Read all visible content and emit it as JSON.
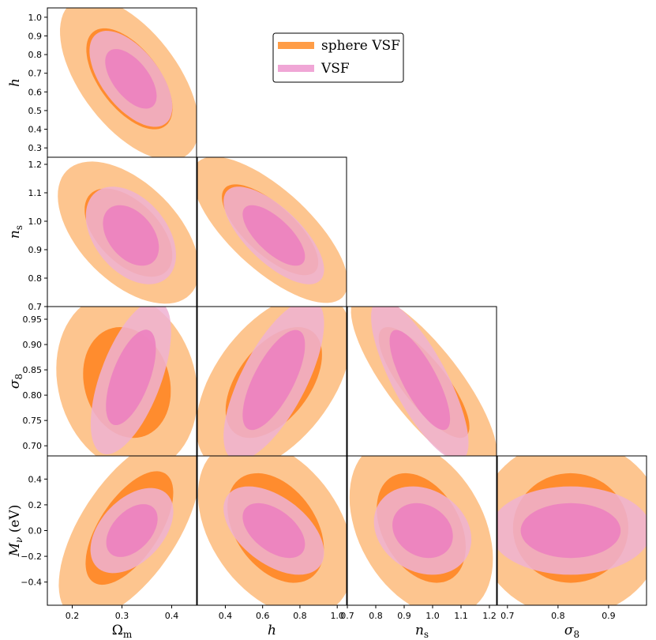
{
  "chart_data": {
    "type": "scatter",
    "subtype": "corner-plot (triangle plot) of 2D confidence ellipses",
    "parameters": [
      {
        "key": "Om",
        "label": "Ω",
        "sub": "m",
        "range": [
          0.15,
          0.45
        ],
        "ticks": [
          0.2,
          0.3,
          0.4
        ],
        "tick_labels": [
          "0.2",
          "0.3",
          "0.4"
        ]
      },
      {
        "key": "h",
        "label": "h",
        "sub": "",
        "range": [
          0.25,
          1.05
        ],
        "ticks": [
          0.3,
          0.4,
          0.5,
          0.6,
          0.7,
          0.8,
          0.9,
          1.0
        ],
        "tick_labels_x": [
          "0.4",
          "0.6",
          "0.8",
          "1.0"
        ],
        "tick_values_x": [
          0.4,
          0.6,
          0.8,
          1.0
        ],
        "tick_labels_y": [
          "0.3",
          "0.4",
          "0.5",
          "0.6",
          "0.7",
          "0.8",
          "0.9",
          "1.0"
        ]
      },
      {
        "key": "ns",
        "label": "n",
        "sub": "s",
        "range": [
          0.7,
          1.225
        ],
        "ticks_y": [
          0.7,
          0.8,
          0.9,
          1.0,
          1.1,
          1.2
        ],
        "tick_labels_y": [
          "0.7",
          "0.8",
          "0.9",
          "1.0",
          "1.1",
          "1.2"
        ],
        "ticks_x": [
          0.7,
          0.8,
          0.9,
          1.0,
          1.1,
          1.2
        ],
        "tick_labels_x": [
          "0.7",
          "0.8",
          "0.9",
          "1.0",
          "1.1",
          "1.2"
        ]
      },
      {
        "key": "s8",
        "label": "σ",
        "sub": "8",
        "range": [
          0.68,
          0.975
        ],
        "ticks_y": [
          0.7,
          0.75,
          0.8,
          0.85,
          0.9,
          0.95
        ],
        "tick_labels_y": [
          "0.70",
          "0.75",
          "0.80",
          "0.85",
          "0.90",
          "0.95"
        ],
        "ticks_x": [
          0.7,
          0.8,
          0.9
        ],
        "tick_labels_x": [
          "0.7",
          "0.8",
          "0.9"
        ]
      },
      {
        "key": "Mnu",
        "label": "M",
        "sub": "ν",
        "suffix": " (eV)",
        "range": [
          -0.58,
          0.58
        ],
        "ticks_y": [
          -0.4,
          -0.2,
          0.0,
          0.2,
          0.4
        ],
        "tick_labels_y": [
          "−0.4",
          "−0.2",
          "0.0",
          "0.2",
          "0.4"
        ]
      }
    ],
    "series": [
      {
        "name": "sphere VSF",
        "color_outer": "#fdc58f",
        "color_inner": "#ff8c2e",
        "swatch": "#ff9d47"
      },
      {
        "name": "VSF",
        "color_outer": "#eeb2d2",
        "color_inner": "#ec7ebf",
        "swatch": "#f0a6d6"
      }
    ],
    "legend": {
      "placement": "top-center",
      "entries": [
        "sphere VSF",
        "VSF"
      ]
    },
    "ellipses": [
      {
        "x": "Om",
        "y": "h",
        "series": 0,
        "cx": 0.315,
        "cy": 0.67,
        "sx": 0.057,
        "sy": 0.178,
        "rho": -0.58
      },
      {
        "x": "Om",
        "y": "h",
        "series": 1,
        "cx": 0.318,
        "cy": 0.67,
        "sx": 0.034,
        "sy": 0.105,
        "rho": -0.58
      },
      {
        "x": "Om",
        "y": "ns",
        "series": 0,
        "cx": 0.313,
        "cy": 0.96,
        "sx": 0.058,
        "sy": 0.102,
        "rho": -0.52
      },
      {
        "x": "Om",
        "y": "ns",
        "series": 1,
        "cx": 0.318,
        "cy": 0.95,
        "sx": 0.037,
        "sy": 0.07,
        "rho": -0.4
      },
      {
        "x": "Om",
        "y": "s8",
        "series": 0,
        "cx": 0.31,
        "cy": 0.825,
        "sx": 0.058,
        "sy": 0.072,
        "rho": -0.15
      },
      {
        "x": "Om",
        "y": "s8",
        "series": 1,
        "cx": 0.318,
        "cy": 0.835,
        "sx": 0.033,
        "sy": 0.062,
        "rho": 0.6
      },
      {
        "x": "Om",
        "y": "Mnu",
        "series": 0,
        "cx": 0.315,
        "cy": 0.02,
        "sx": 0.058,
        "sy": 0.29,
        "rho": 0.62
      },
      {
        "x": "Om",
        "y": "Mnu",
        "series": 1,
        "cx": 0.32,
        "cy": 0.0,
        "sx": 0.034,
        "sy": 0.135,
        "rho": 0.45
      },
      {
        "x": "h",
        "y": "ns",
        "series": 0,
        "cx": 0.64,
        "cy": 0.97,
        "sx": 0.17,
        "sy": 0.105,
        "rho": -0.72
      },
      {
        "x": "h",
        "y": "ns",
        "series": 1,
        "cx": 0.66,
        "cy": 0.95,
        "sx": 0.11,
        "sy": 0.07,
        "rho": -0.7
      },
      {
        "x": "h",
        "y": "s8",
        "series": 0,
        "cx": 0.66,
        "cy": 0.825,
        "sx": 0.17,
        "sy": 0.072,
        "rho": 0.5
      },
      {
        "x": "h",
        "y": "s8",
        "series": 1,
        "cx": 0.66,
        "cy": 0.83,
        "sx": 0.11,
        "sy": 0.065,
        "rho": 0.7
      },
      {
        "x": "h",
        "y": "Mnu",
        "series": 0,
        "cx": 0.67,
        "cy": 0.02,
        "sx": 0.17,
        "sy": 0.28,
        "rho": -0.38
      },
      {
        "x": "h",
        "y": "Mnu",
        "series": 1,
        "cx": 0.66,
        "cy": 0.0,
        "sx": 0.11,
        "sy": 0.14,
        "rho": -0.5
      },
      {
        "x": "ns",
        "y": "s8",
        "series": 0,
        "cx": 0.97,
        "cy": 0.825,
        "sx": 0.105,
        "sy": 0.072,
        "rho": -0.8
      },
      {
        "x": "ns",
        "y": "s8",
        "series": 1,
        "cx": 0.955,
        "cy": 0.83,
        "sx": 0.07,
        "sy": 0.065,
        "rho": -0.78
      },
      {
        "x": "ns",
        "y": "Mnu",
        "series": 0,
        "cx": 0.96,
        "cy": 0.02,
        "sx": 0.103,
        "sy": 0.28,
        "rho": -0.35
      },
      {
        "x": "ns",
        "y": "Mnu",
        "series": 1,
        "cx": 0.965,
        "cy": 0.0,
        "sx": 0.07,
        "sy": 0.14,
        "rho": -0.2
      },
      {
        "x": "s8",
        "y": "Mnu",
        "series": 0,
        "cx": 0.825,
        "cy": 0.02,
        "sx": 0.075,
        "sy": 0.28,
        "rho": 0.0
      },
      {
        "x": "s8",
        "y": "Mnu",
        "series": 1,
        "cx": 0.825,
        "cy": 0.0,
        "sx": 0.065,
        "sy": 0.14,
        "rho": 0.0
      }
    ],
    "grid": false
  }
}
